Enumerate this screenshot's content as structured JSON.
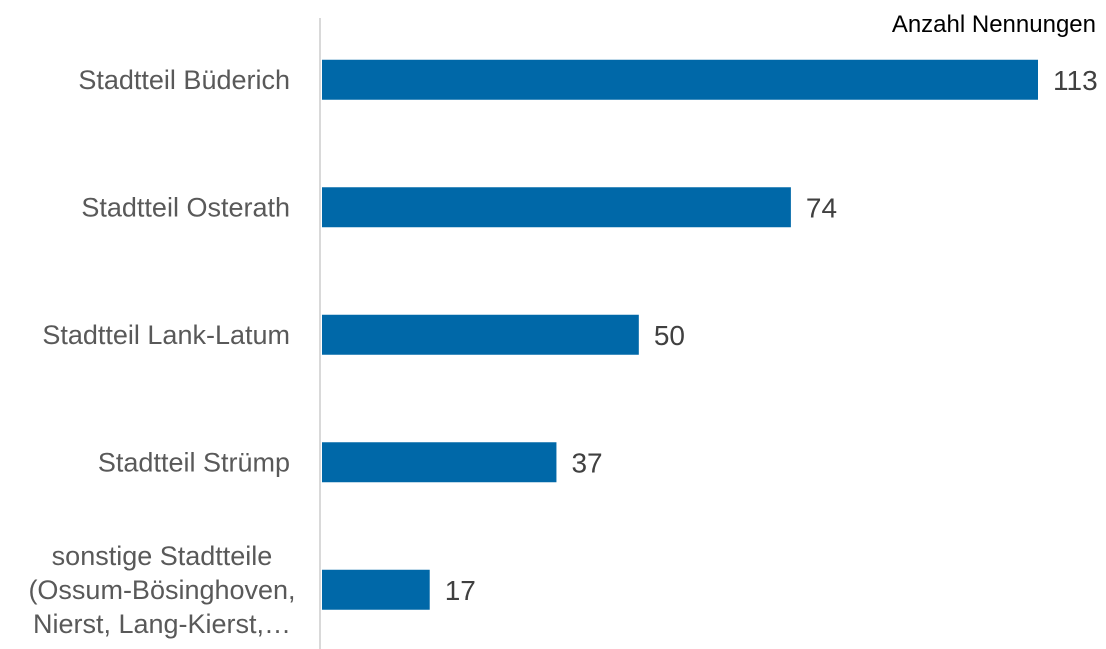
{
  "chart_data": {
    "type": "bar",
    "orientation": "horizontal",
    "unit_label": "Anzahl Nennungen",
    "categories": [
      [
        "Stadtteil Büderich"
      ],
      [
        "Stadtteil Osterath"
      ],
      [
        "Stadtteil Lank-Latum"
      ],
      [
        "Stadtteil Strümp"
      ],
      [
        "sonstige Stadtteile",
        "(Ossum-Bösinghoven,",
        "Nierst, Lang-Kierst,…"
      ]
    ],
    "values": [
      113,
      74,
      50,
      37,
      17
    ],
    "xlim": [
      0,
      113
    ],
    "grid": false,
    "legend": "none",
    "colors": {
      "bar": "#0068A8",
      "axis": "#D9D9D9",
      "category_text": "#595959",
      "value_text": "#404040",
      "unit_text": "#000000"
    }
  }
}
